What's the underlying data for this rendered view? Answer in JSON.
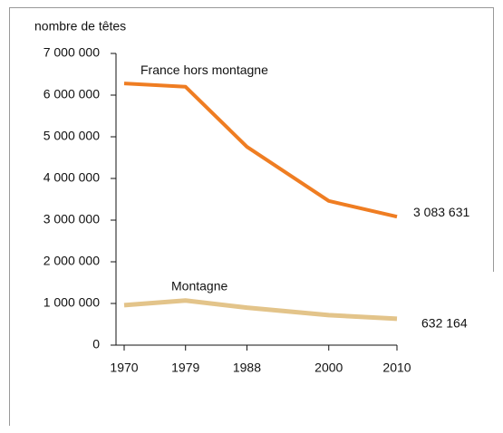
{
  "chart_data": {
    "type": "line",
    "ylabel": "nombre de têtes",
    "x": [
      1970,
      1979,
      1988,
      2000,
      2010
    ],
    "xlim": [
      1970,
      2010
    ],
    "xticks": [
      1970,
      1979,
      1988,
      2000,
      2010
    ],
    "ylim": [
      0,
      7000000
    ],
    "yticks": [
      0,
      {
        "value": 1000000,
        "label": "1 000 000"
      },
      {
        "value": 2000000,
        "label": "2 000 000"
      },
      {
        "value": 3000000,
        "label": "3 000 000"
      },
      {
        "value": 4000000,
        "label": "4 000 000"
      },
      {
        "value": 5000000,
        "label": "5 000 000"
      },
      {
        "value": 6000000,
        "label": "6 000 000"
      },
      {
        "value": 7000000,
        "label": "7 000 000"
      }
    ],
    "grid": false,
    "series": [
      {
        "name": "France hors montagne",
        "color": "#ef7d22",
        "values": [
          6280000,
          6200000,
          4760000,
          3460000,
          3083631
        ],
        "value_labels": [
          null,
          null,
          null,
          null,
          "3 083 631"
        ]
      },
      {
        "name": "Montagne",
        "color": "#e3c48a",
        "values": [
          960000,
          1070000,
          900000,
          720000,
          632164
        ],
        "value_labels": [
          null,
          null,
          null,
          null,
          "632 164"
        ]
      }
    ]
  }
}
